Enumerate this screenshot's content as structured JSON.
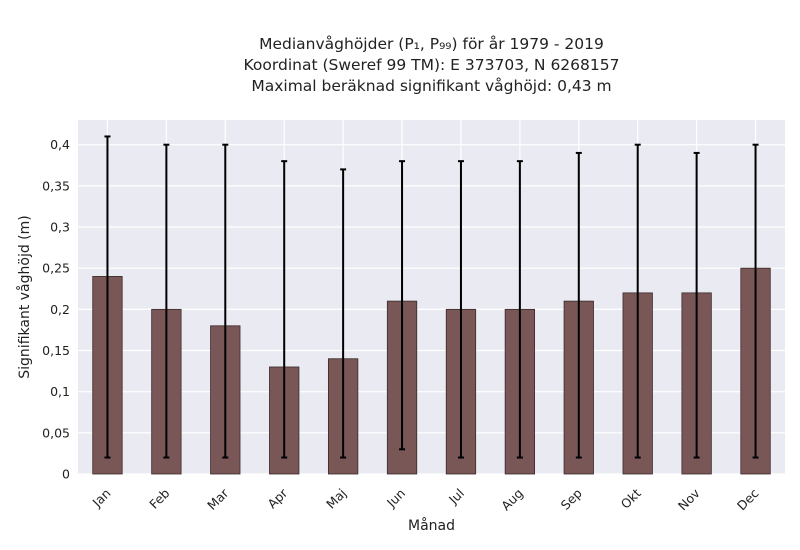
{
  "chart_data": {
    "type": "bar",
    "title_lines": [
      "Medianvåghöjder (P₁, P₉₉) för år 1979 - 2019",
      "Koordinat (Sweref 99 TM): E 373703, N 6268157",
      "Maximal beräknad signifikant våghöjd: 0,43 m"
    ],
    "xlabel": "Månad",
    "ylabel": "Signifikant våghöjd (m)",
    "categories": [
      "Jan",
      "Feb",
      "Mar",
      "Apr",
      "Maj",
      "Jun",
      "Jul",
      "Aug",
      "Sep",
      "Okt",
      "Nov",
      "Dec"
    ],
    "values": [
      0.24,
      0.2,
      0.18,
      0.13,
      0.14,
      0.21,
      0.2,
      0.2,
      0.21,
      0.22,
      0.22,
      0.25
    ],
    "error_low": [
      0.02,
      0.02,
      0.02,
      0.02,
      0.02,
      0.03,
      0.02,
      0.02,
      0.02,
      0.02,
      0.02,
      0.02
    ],
    "error_high": [
      0.41,
      0.4,
      0.4,
      0.38,
      0.37,
      0.38,
      0.38,
      0.38,
      0.39,
      0.4,
      0.39,
      0.4
    ],
    "ylim": [
      0,
      0.43
    ],
    "yticks": [
      0,
      0.05,
      0.1,
      0.15,
      0.2,
      0.25,
      0.3,
      0.35,
      0.4
    ],
    "ytick_labels": [
      "0",
      "0,05",
      "0,1",
      "0,15",
      "0,2",
      "0,25",
      "0,3",
      "0,35",
      "0,4"
    ],
    "grid": true,
    "colors": {
      "bar": "#7a5757",
      "bar_edge": "#3a2a2a",
      "error": "#000000",
      "plot_bg": "#eaeaf2",
      "grid": "#ffffff"
    }
  }
}
